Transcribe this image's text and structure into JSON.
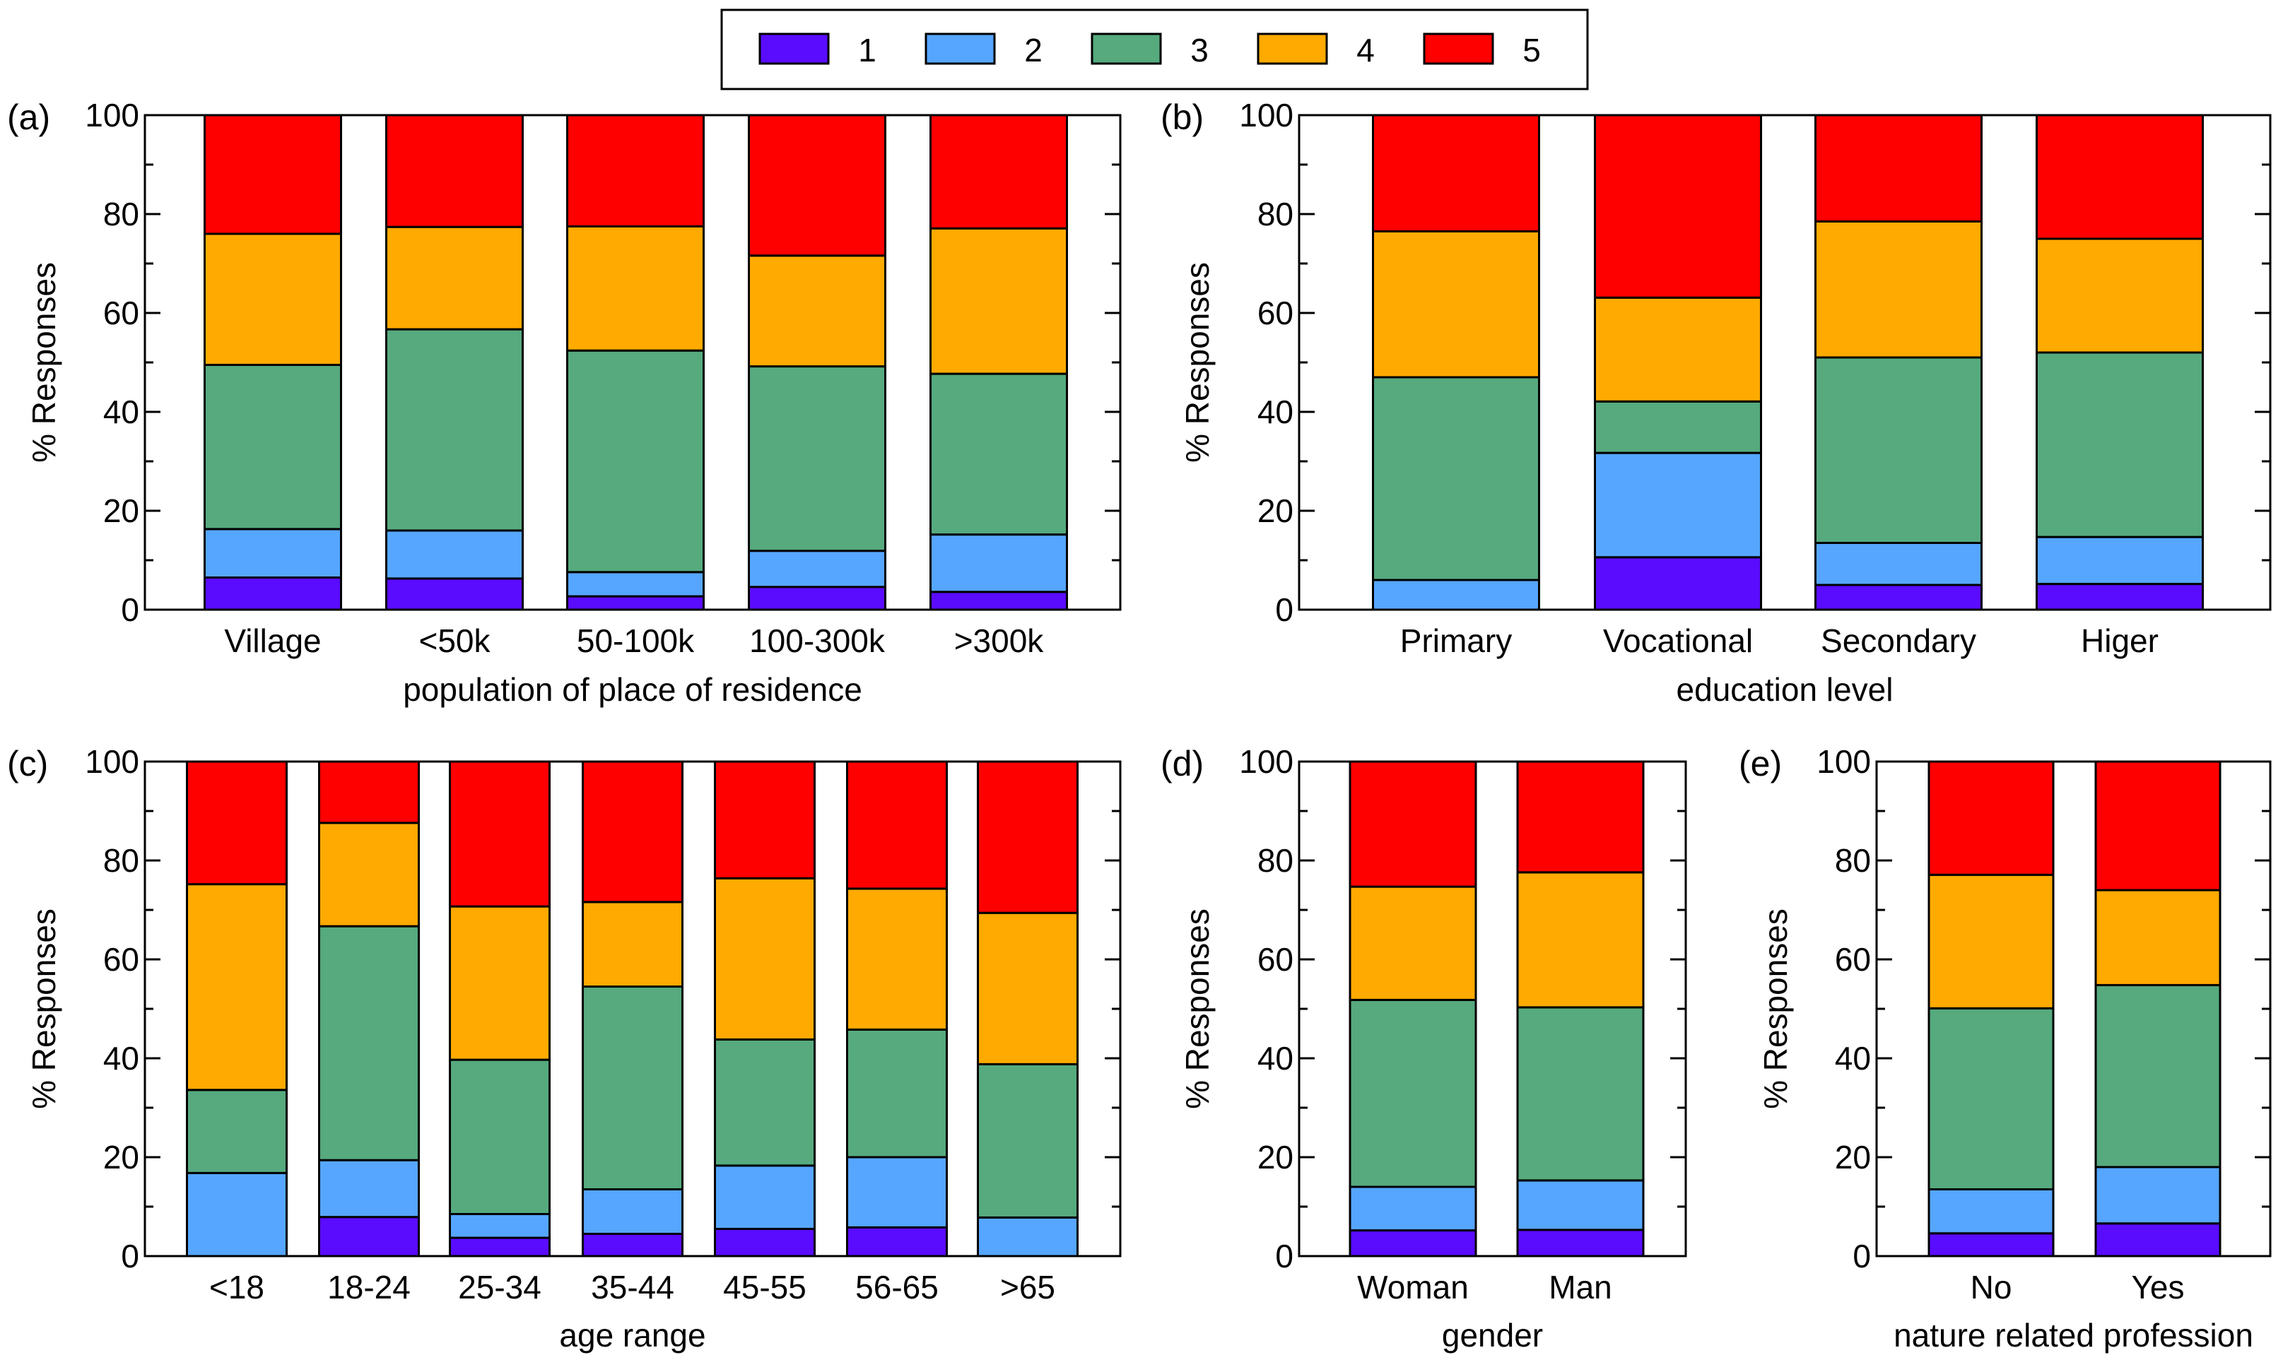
{
  "legend": {
    "entries": [
      {
        "label": "1",
        "color": "#5a0cff"
      },
      {
        "label": "2",
        "color": "#56a6ff"
      },
      {
        "label": "3",
        "color": "#56aa7e"
      },
      {
        "label": "4",
        "color": "#ffaa00"
      },
      {
        "label": "5",
        "color": "#ff0000"
      }
    ]
  },
  "chart_data": [
    {
      "panel": "(a)",
      "type": "bar",
      "stacked": true,
      "xlabel": "population of place of residence",
      "ylabel": "% Responses",
      "ylim": [
        0,
        100
      ],
      "yticks": [
        0,
        20,
        40,
        60,
        80,
        100
      ],
      "categories": [
        "Village",
        "<50k",
        "50-100k",
        "100-300k",
        ">300k"
      ],
      "series": [
        {
          "name": "1",
          "values": [
            6.5,
            6.3,
            2.7,
            4.6,
            3.6
          ]
        },
        {
          "name": "2",
          "values": [
            9.8,
            9.7,
            4.9,
            7.3,
            11.6
          ]
        },
        {
          "name": "3",
          "values": [
            33.2,
            40.7,
            44.8,
            37.3,
            32.5
          ]
        },
        {
          "name": "4",
          "values": [
            26.5,
            20.7,
            25.1,
            22.4,
            29.4
          ]
        },
        {
          "name": "5",
          "values": [
            24.0,
            22.6,
            22.5,
            28.4,
            22.9
          ]
        }
      ]
    },
    {
      "panel": "(b)",
      "type": "bar",
      "stacked": true,
      "xlabel": "education level",
      "ylabel": "% Responses",
      "ylim": [
        0,
        100
      ],
      "yticks": [
        0,
        20,
        40,
        60,
        80,
        100
      ],
      "categories": [
        "Primary",
        "Vocational",
        "Secondary",
        "Higer"
      ],
      "series": [
        {
          "name": "1",
          "values": [
            0,
            10.6,
            5.0,
            5.2
          ]
        },
        {
          "name": "2",
          "values": [
            6.0,
            21.1,
            8.5,
            9.5
          ]
        },
        {
          "name": "3",
          "values": [
            41.0,
            10.4,
            37.5,
            37.3
          ]
        },
        {
          "name": "4",
          "values": [
            29.5,
            21.0,
            27.5,
            23.0
          ]
        },
        {
          "name": "5",
          "values": [
            23.5,
            36.9,
            21.5,
            25.0
          ]
        }
      ]
    },
    {
      "panel": "(c)",
      "type": "bar",
      "stacked": true,
      "xlabel": "age range",
      "ylabel": "% Responses",
      "ylim": [
        0,
        100
      ],
      "yticks": [
        0,
        20,
        40,
        60,
        80,
        100
      ],
      "categories": [
        "<18",
        "18-24",
        "25-34",
        "35-44",
        "45-55",
        "56-65",
        ">65"
      ],
      "series": [
        {
          "name": "1",
          "values": [
            0,
            7.9,
            3.7,
            4.5,
            5.5,
            5.8,
            0
          ]
        },
        {
          "name": "2",
          "values": [
            16.8,
            11.5,
            4.8,
            9.0,
            12.8,
            14.2,
            7.8
          ]
        },
        {
          "name": "3",
          "values": [
            16.8,
            47.3,
            31.2,
            41.0,
            25.5,
            25.8,
            31.0
          ]
        },
        {
          "name": "4",
          "values": [
            41.6,
            20.9,
            31.0,
            17.1,
            32.6,
            28.5,
            30.6
          ]
        },
        {
          "name": "5",
          "values": [
            24.8,
            12.4,
            29.3,
            28.4,
            23.6,
            25.7,
            30.6
          ]
        }
      ]
    },
    {
      "panel": "(d)",
      "type": "bar",
      "stacked": true,
      "xlabel": "gender",
      "ylabel": "% Responses",
      "ylim": [
        0,
        100
      ],
      "yticks": [
        0,
        20,
        40,
        60,
        80,
        100
      ],
      "categories": [
        "Woman",
        "Man"
      ],
      "series": [
        {
          "name": "1",
          "values": [
            5.2,
            5.3
          ]
        },
        {
          "name": "2",
          "values": [
            8.8,
            10.0
          ]
        },
        {
          "name": "3",
          "values": [
            37.8,
            35.0
          ]
        },
        {
          "name": "4",
          "values": [
            22.9,
            27.3
          ]
        },
        {
          "name": "5",
          "values": [
            25.3,
            22.4
          ]
        }
      ]
    },
    {
      "panel": "(e)",
      "type": "bar",
      "stacked": true,
      "xlabel": "nature related profession",
      "ylabel": "% Responses",
      "ylim": [
        0,
        100
      ],
      "yticks": [
        0,
        20,
        40,
        60,
        80,
        100
      ],
      "categories": [
        "No",
        "Yes"
      ],
      "series": [
        {
          "name": "1",
          "values": [
            4.6,
            6.6
          ]
        },
        {
          "name": "2",
          "values": [
            8.9,
            11.4
          ]
        },
        {
          "name": "3",
          "values": [
            36.6,
            36.8
          ]
        },
        {
          "name": "4",
          "values": [
            27.0,
            19.2
          ]
        },
        {
          "name": "5",
          "values": [
            22.9,
            26.0
          ]
        }
      ]
    }
  ]
}
